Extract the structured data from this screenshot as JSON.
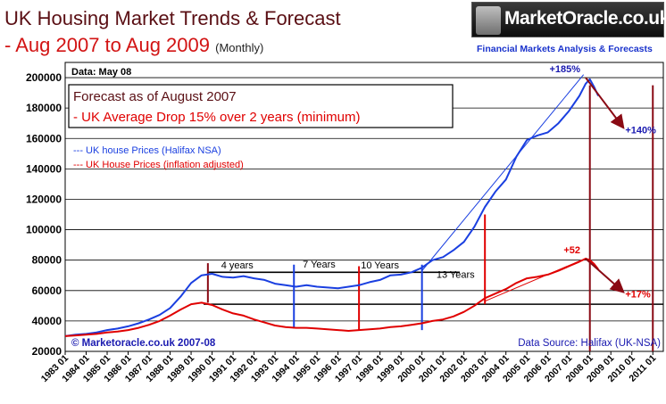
{
  "header": {
    "title_line1": "UK Housing Market Trends & Forecast",
    "title_line2": "- Aug 2007 to Aug 2009",
    "title_note": "(Monthly)"
  },
  "logo": {
    "brand": "MarketOracle.co.uk",
    "tagline": "Financial Markets Analysis & Forecasts"
  },
  "chart_data": {
    "type": "line",
    "title": "UK Housing Market Trends & Forecast - Aug 2007 to Aug 2009 (Monthly)",
    "date_label": "Data: May 08",
    "ylim": [
      20000,
      210000
    ],
    "y_ticks": [
      "20000",
      "40000",
      "60000",
      "80000",
      "100000",
      "120000",
      "140000",
      "160000",
      "180000",
      "200000"
    ],
    "x_ticks": [
      "1983 01",
      "1984 01",
      "1985 01",
      "1986 01",
      "1987 01",
      "1988 01",
      "1989 01",
      "1990 01",
      "1991 01",
      "1992 01",
      "1993 01",
      "1994 01",
      "1995 01",
      "1996 01",
      "1997 01",
      "1998 01",
      "1999 01",
      "2000 01",
      "2001 01",
      "2002 01",
      "2003 01",
      "2004 01",
      "2005 01",
      "2006 01",
      "2007 01",
      "2008 01",
      "2009 01",
      "2010 01",
      "2011 01"
    ],
    "xlim": [
      1983.0,
      2011.5
    ],
    "series": [
      {
        "name": "UK house Prices (Halifax NSA)",
        "legend": "--- UK house Prices (Halifax NSA)",
        "color": "#1a3fe0",
        "points": [
          [
            1983.0,
            30000
          ],
          [
            1983.5,
            31000
          ],
          [
            1984.0,
            31500
          ],
          [
            1984.5,
            32500
          ],
          [
            1985.0,
            34000
          ],
          [
            1985.5,
            35000
          ],
          [
            1986.0,
            36500
          ],
          [
            1986.5,
            38500
          ],
          [
            1987.0,
            41000
          ],
          [
            1987.5,
            44000
          ],
          [
            1988.0,
            48500
          ],
          [
            1988.5,
            56000
          ],
          [
            1989.0,
            65000
          ],
          [
            1989.5,
            70000
          ],
          [
            1990.0,
            71000
          ],
          [
            1990.5,
            69000
          ],
          [
            1991.0,
            68500
          ],
          [
            1991.5,
            69500
          ],
          [
            1992.0,
            68000
          ],
          [
            1992.5,
            67000
          ],
          [
            1993.0,
            64500
          ],
          [
            1993.5,
            63500
          ],
          [
            1994.0,
            62500
          ],
          [
            1994.5,
            63500
          ],
          [
            1995.0,
            62500
          ],
          [
            1995.5,
            62000
          ],
          [
            1996.0,
            61500
          ],
          [
            1996.5,
            62500
          ],
          [
            1997.0,
            63500
          ],
          [
            1997.5,
            65500
          ],
          [
            1998.0,
            67000
          ],
          [
            1998.5,
            70000
          ],
          [
            1999.0,
            70500
          ],
          [
            1999.5,
            72000
          ],
          [
            2000.0,
            75000
          ],
          [
            2000.5,
            80000
          ],
          [
            2001.0,
            82000
          ],
          [
            2001.5,
            86500
          ],
          [
            2002.0,
            92000
          ],
          [
            2002.5,
            102000
          ],
          [
            2003.0,
            115000
          ],
          [
            2003.5,
            125000
          ],
          [
            2004.0,
            133000
          ],
          [
            2004.5,
            148000
          ],
          [
            2005.0,
            159000
          ],
          [
            2005.5,
            162000
          ],
          [
            2006.0,
            164000
          ],
          [
            2006.5,
            170000
          ],
          [
            2007.0,
            178000
          ],
          [
            2007.5,
            188000
          ],
          [
            2007.8,
            196000
          ],
          [
            2008.0,
            199000
          ],
          [
            2008.2,
            194000
          ],
          [
            2008.4,
            188000
          ]
        ]
      },
      {
        "name": "UK House Prices (inflation adjusted)",
        "legend": "--- UK House Prices (inflation adjusted)",
        "color": "#e00000",
        "points": [
          [
            1983.0,
            30000
          ],
          [
            1983.5,
            30500
          ],
          [
            1984.0,
            31000
          ],
          [
            1984.5,
            31500
          ],
          [
            1985.0,
            32500
          ],
          [
            1985.5,
            33000
          ],
          [
            1986.0,
            34000
          ],
          [
            1986.5,
            35500
          ],
          [
            1987.0,
            37500
          ],
          [
            1987.5,
            40000
          ],
          [
            1988.0,
            43500
          ],
          [
            1988.5,
            47500
          ],
          [
            1989.0,
            51000
          ],
          [
            1989.5,
            52000
          ],
          [
            1990.0,
            50500
          ],
          [
            1990.5,
            47500
          ],
          [
            1991.0,
            45000
          ],
          [
            1991.5,
            43500
          ],
          [
            1992.0,
            41000
          ],
          [
            1992.5,
            39000
          ],
          [
            1993.0,
            37000
          ],
          [
            1993.5,
            36000
          ],
          [
            1994.0,
            35500
          ],
          [
            1994.5,
            35500
          ],
          [
            1995.0,
            35000
          ],
          [
            1995.5,
            34500
          ],
          [
            1996.0,
            34000
          ],
          [
            1996.5,
            33500
          ],
          [
            1997.0,
            34000
          ],
          [
            1997.5,
            34500
          ],
          [
            1998.0,
            35000
          ],
          [
            1998.5,
            36000
          ],
          [
            1999.0,
            36500
          ],
          [
            1999.5,
            37500
          ],
          [
            2000.0,
            38500
          ],
          [
            2000.5,
            40000
          ],
          [
            2001.0,
            41000
          ],
          [
            2001.5,
            43000
          ],
          [
            2002.0,
            46000
          ],
          [
            2002.5,
            50000
          ],
          [
            2003.0,
            55000
          ],
          [
            2003.5,
            58000
          ],
          [
            2004.0,
            61000
          ],
          [
            2004.5,
            65000
          ],
          [
            2005.0,
            68000
          ],
          [
            2005.5,
            69000
          ],
          [
            2006.0,
            70500
          ],
          [
            2006.5,
            73000
          ],
          [
            2007.0,
            76000
          ],
          [
            2007.5,
            79000
          ],
          [
            2007.8,
            81000
          ],
          [
            2008.0,
            80000
          ],
          [
            2008.2,
            77500
          ],
          [
            2008.4,
            74000
          ]
        ]
      }
    ],
    "forecast_arrows": [
      {
        "label": "+185%",
        "value_label": "+140%",
        "from": [
          2007.8,
          200000
        ],
        "to": [
          2009.6,
          167000
        ],
        "color": "#8a0a14",
        "label_color": "#1a1ab0"
      },
      {
        "label": "+52",
        "value_label": "+17%",
        "from": [
          2007.8,
          81000
        ],
        "to": [
          2009.6,
          59000
        ],
        "color": "#8a0a14",
        "label_color": "#e00000"
      }
    ],
    "trend_lines": [
      {
        "from": [
          2000.0,
          73000
        ],
        "to": [
          2007.7,
          202000
        ],
        "color": "#1a3fe0"
      },
      {
        "from": [
          2003.0,
          53000
        ],
        "to": [
          2007.6,
          80000
        ],
        "color": "#e00000"
      }
    ],
    "reference_lines": [
      {
        "type": "h",
        "y": 72000,
        "from": 1989.8,
        "to": 2001.8,
        "color": "#000000"
      },
      {
        "type": "h",
        "y": 51000,
        "from": 1989.6,
        "to": 2011.5,
        "color": "#000000"
      },
      {
        "type": "v",
        "x": 1989.8,
        "y0": 52000,
        "y1": 78000,
        "color": "#8a0a14"
      },
      {
        "type": "v",
        "x": 1993.9,
        "y0": 35000,
        "y1": 77000,
        "color": "#1a3fe0"
      },
      {
        "type": "v",
        "x": 1997.0,
        "y0": 34000,
        "y1": 76000,
        "color": "#e00000"
      },
      {
        "type": "v",
        "x": 2000.0,
        "y0": 34000,
        "y1": 77000,
        "color": "#1a3fe0"
      },
      {
        "type": "v",
        "x": 2003.0,
        "y0": 51000,
        "y1": 110000,
        "color": "#e00000"
      },
      {
        "type": "v",
        "x": 2008.0,
        "y0": 20000,
        "y1": 195000,
        "color": "#8a0a14"
      },
      {
        "type": "v",
        "x": 2011.0,
        "y0": 20000,
        "y1": 195000,
        "color": "#8a0a14"
      }
    ],
    "cycle_labels": [
      {
        "text": "4 years",
        "x": 1991.2,
        "y": 74500
      },
      {
        "text": "7 Years",
        "x": 1995.1,
        "y": 75000
      },
      {
        "text": "10 Years",
        "x": 1998.0,
        "y": 74500
      },
      {
        "text": "13 Years",
        "x": 2001.6,
        "y": 68500
      }
    ],
    "annotation_box": {
      "title": "Forecast as of August 2007",
      "text": "- UK Average Drop 15% over 2 years (minimum)"
    },
    "footer_left": "© Marketoracle.co.uk 2007-08",
    "footer_right": "Data Source: Halifax (UK-NSA)"
  }
}
